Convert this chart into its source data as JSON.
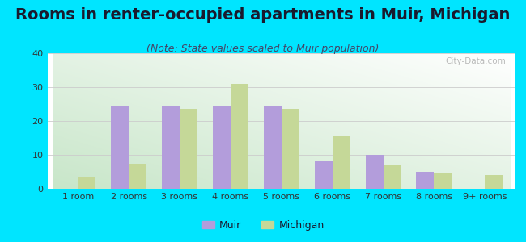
{
  "title": "Rooms in renter-occupied apartments in Muir, Michigan",
  "subtitle": "(Note: State values scaled to Muir population)",
  "categories": [
    "1 room",
    "2 rooms",
    "3 rooms",
    "4 rooms",
    "5 rooms",
    "6 rooms",
    "7 rooms",
    "8 rooms",
    "9+ rooms"
  ],
  "muir_values": [
    0,
    24.5,
    24.5,
    24.5,
    24.5,
    8,
    10,
    5,
    0
  ],
  "michigan_values": [
    3.5,
    7.5,
    23.5,
    31,
    23.5,
    15.5,
    7,
    4.5,
    4
  ],
  "muir_color": "#b39ddb",
  "michigan_color": "#c5d898",
  "background_outer": "#00e5ff",
  "grad_color_start": "#c8e6c9",
  "grad_color_end": "#f5fff5",
  "ylim": [
    0,
    40
  ],
  "yticks": [
    0,
    10,
    20,
    30,
    40
  ],
  "bar_width": 0.35,
  "title_fontsize": 14,
  "subtitle_fontsize": 9,
  "tick_fontsize": 8,
  "legend_fontsize": 9
}
